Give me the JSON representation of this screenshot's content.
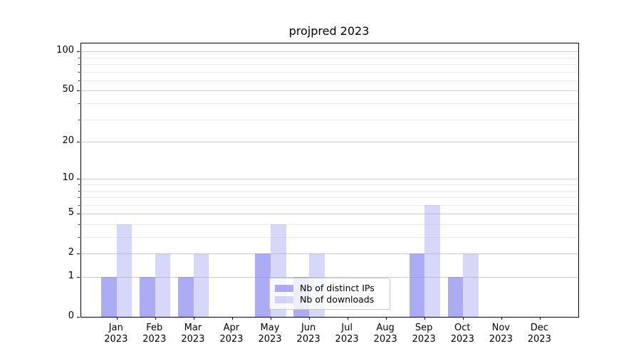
{
  "title": "projpred 2023",
  "colors": {
    "bar_distinct_ips": "rgba(140,140,240,0.72)",
    "bar_distinct_ips_hex": "#a8a8f4",
    "bar_downloads": "rgba(160,160,240,0.42)",
    "bar_downloads_hex": "#d9d9f8",
    "grid_major": "#cccccc",
    "grid_minor": "#ececec",
    "axis": "#000000",
    "background": "#ffffff"
  },
  "chart_data": {
    "type": "bar",
    "title": "projpred 2023",
    "xlabel": "",
    "ylabel": "",
    "yscale": "log1p",
    "ylim": [
      0,
      115
    ],
    "grid": "both-horizontal",
    "legend_position": "lower center",
    "yticks": [
      0,
      1,
      2,
      5,
      10,
      20,
      50,
      100
    ],
    "yticks_minor": [
      3,
      4,
      6,
      7,
      8,
      9,
      30,
      40,
      60,
      70,
      80,
      90
    ],
    "categories": [
      {
        "month": "Jan",
        "year": "2023"
      },
      {
        "month": "Feb",
        "year": "2023"
      },
      {
        "month": "Mar",
        "year": "2023"
      },
      {
        "month": "Apr",
        "year": "2023"
      },
      {
        "month": "May",
        "year": "2023"
      },
      {
        "month": "Jun",
        "year": "2023"
      },
      {
        "month": "Jul",
        "year": "2023"
      },
      {
        "month": "Aug",
        "year": "2023"
      },
      {
        "month": "Sep",
        "year": "2023"
      },
      {
        "month": "Oct",
        "year": "2023"
      },
      {
        "month": "Nov",
        "year": "2023"
      },
      {
        "month": "Dec",
        "year": "2023"
      }
    ],
    "series": [
      {
        "name": "Nb of distinct IPs",
        "color": "rgba(140,140,240,0.72)",
        "values": [
          1,
          1,
          1,
          0,
          2,
          1,
          0,
          0,
          2,
          1,
          0,
          0
        ]
      },
      {
        "name": "Nb of downloads",
        "color": "rgba(160,160,240,0.42)",
        "values": [
          4,
          2,
          2,
          0,
          4,
          2,
          0,
          0,
          6,
          2,
          0,
          0
        ]
      }
    ]
  },
  "legend": {
    "items": [
      "Nb of distinct IPs",
      "Nb of downloads"
    ]
  }
}
